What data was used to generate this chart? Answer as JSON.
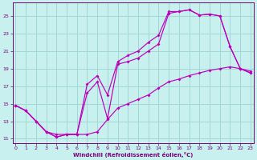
{
  "xlabel": "Windchill (Refroidissement éolien,°C)",
  "bg_color": "#c8f0ee",
  "line_color": "#bb00bb",
  "grid_color": "#a0d8d4",
  "axis_color": "#770077",
  "xlim": [
    -0.3,
    23.3
  ],
  "ylim": [
    10.5,
    26.5
  ],
  "xticks": [
    0,
    1,
    2,
    3,
    4,
    5,
    6,
    7,
    8,
    9,
    10,
    11,
    12,
    13,
    14,
    15,
    16,
    17,
    18,
    19,
    20,
    21,
    22,
    23
  ],
  "yticks": [
    11,
    13,
    15,
    17,
    19,
    21,
    23,
    25
  ],
  "line1_x": [
    0,
    1,
    2,
    3,
    4,
    5,
    6,
    7,
    8,
    9,
    10,
    11,
    12,
    13,
    14,
    15,
    16,
    17,
    18,
    19,
    20,
    21,
    22,
    23
  ],
  "line1_y": [
    14.8,
    14.2,
    13.0,
    11.8,
    11.2,
    11.5,
    11.5,
    11.5,
    11.8,
    13.2,
    14.5,
    15.0,
    15.5,
    16.0,
    16.8,
    17.5,
    17.8,
    18.2,
    18.5,
    18.8,
    19.0,
    19.2,
    19.0,
    18.7
  ],
  "line2_x": [
    0,
    1,
    2,
    3,
    4,
    5,
    6,
    7,
    8,
    9,
    10,
    11,
    12,
    13,
    14,
    15,
    16,
    17,
    18,
    19,
    20,
    21,
    22,
    23
  ],
  "line2_y": [
    14.8,
    14.2,
    13.0,
    11.8,
    11.2,
    11.5,
    11.5,
    16.2,
    17.5,
    13.3,
    19.5,
    19.8,
    20.2,
    21.0,
    21.8,
    25.3,
    25.5,
    25.7,
    25.1,
    25.2,
    25.0,
    21.5,
    19.0,
    18.5
  ],
  "line3_x": [
    0,
    1,
    2,
    3,
    4,
    5,
    6,
    7,
    8,
    9,
    10,
    11,
    12,
    13,
    14,
    15,
    16,
    17,
    18,
    19,
    20,
    21,
    22,
    23
  ],
  "line3_y": [
    14.8,
    14.2,
    13.0,
    11.8,
    11.5,
    11.5,
    11.5,
    17.2,
    18.2,
    16.0,
    19.8,
    20.5,
    21.0,
    22.0,
    22.8,
    25.5,
    25.5,
    25.7,
    25.1,
    25.2,
    25.0,
    21.5,
    19.0,
    18.5
  ]
}
